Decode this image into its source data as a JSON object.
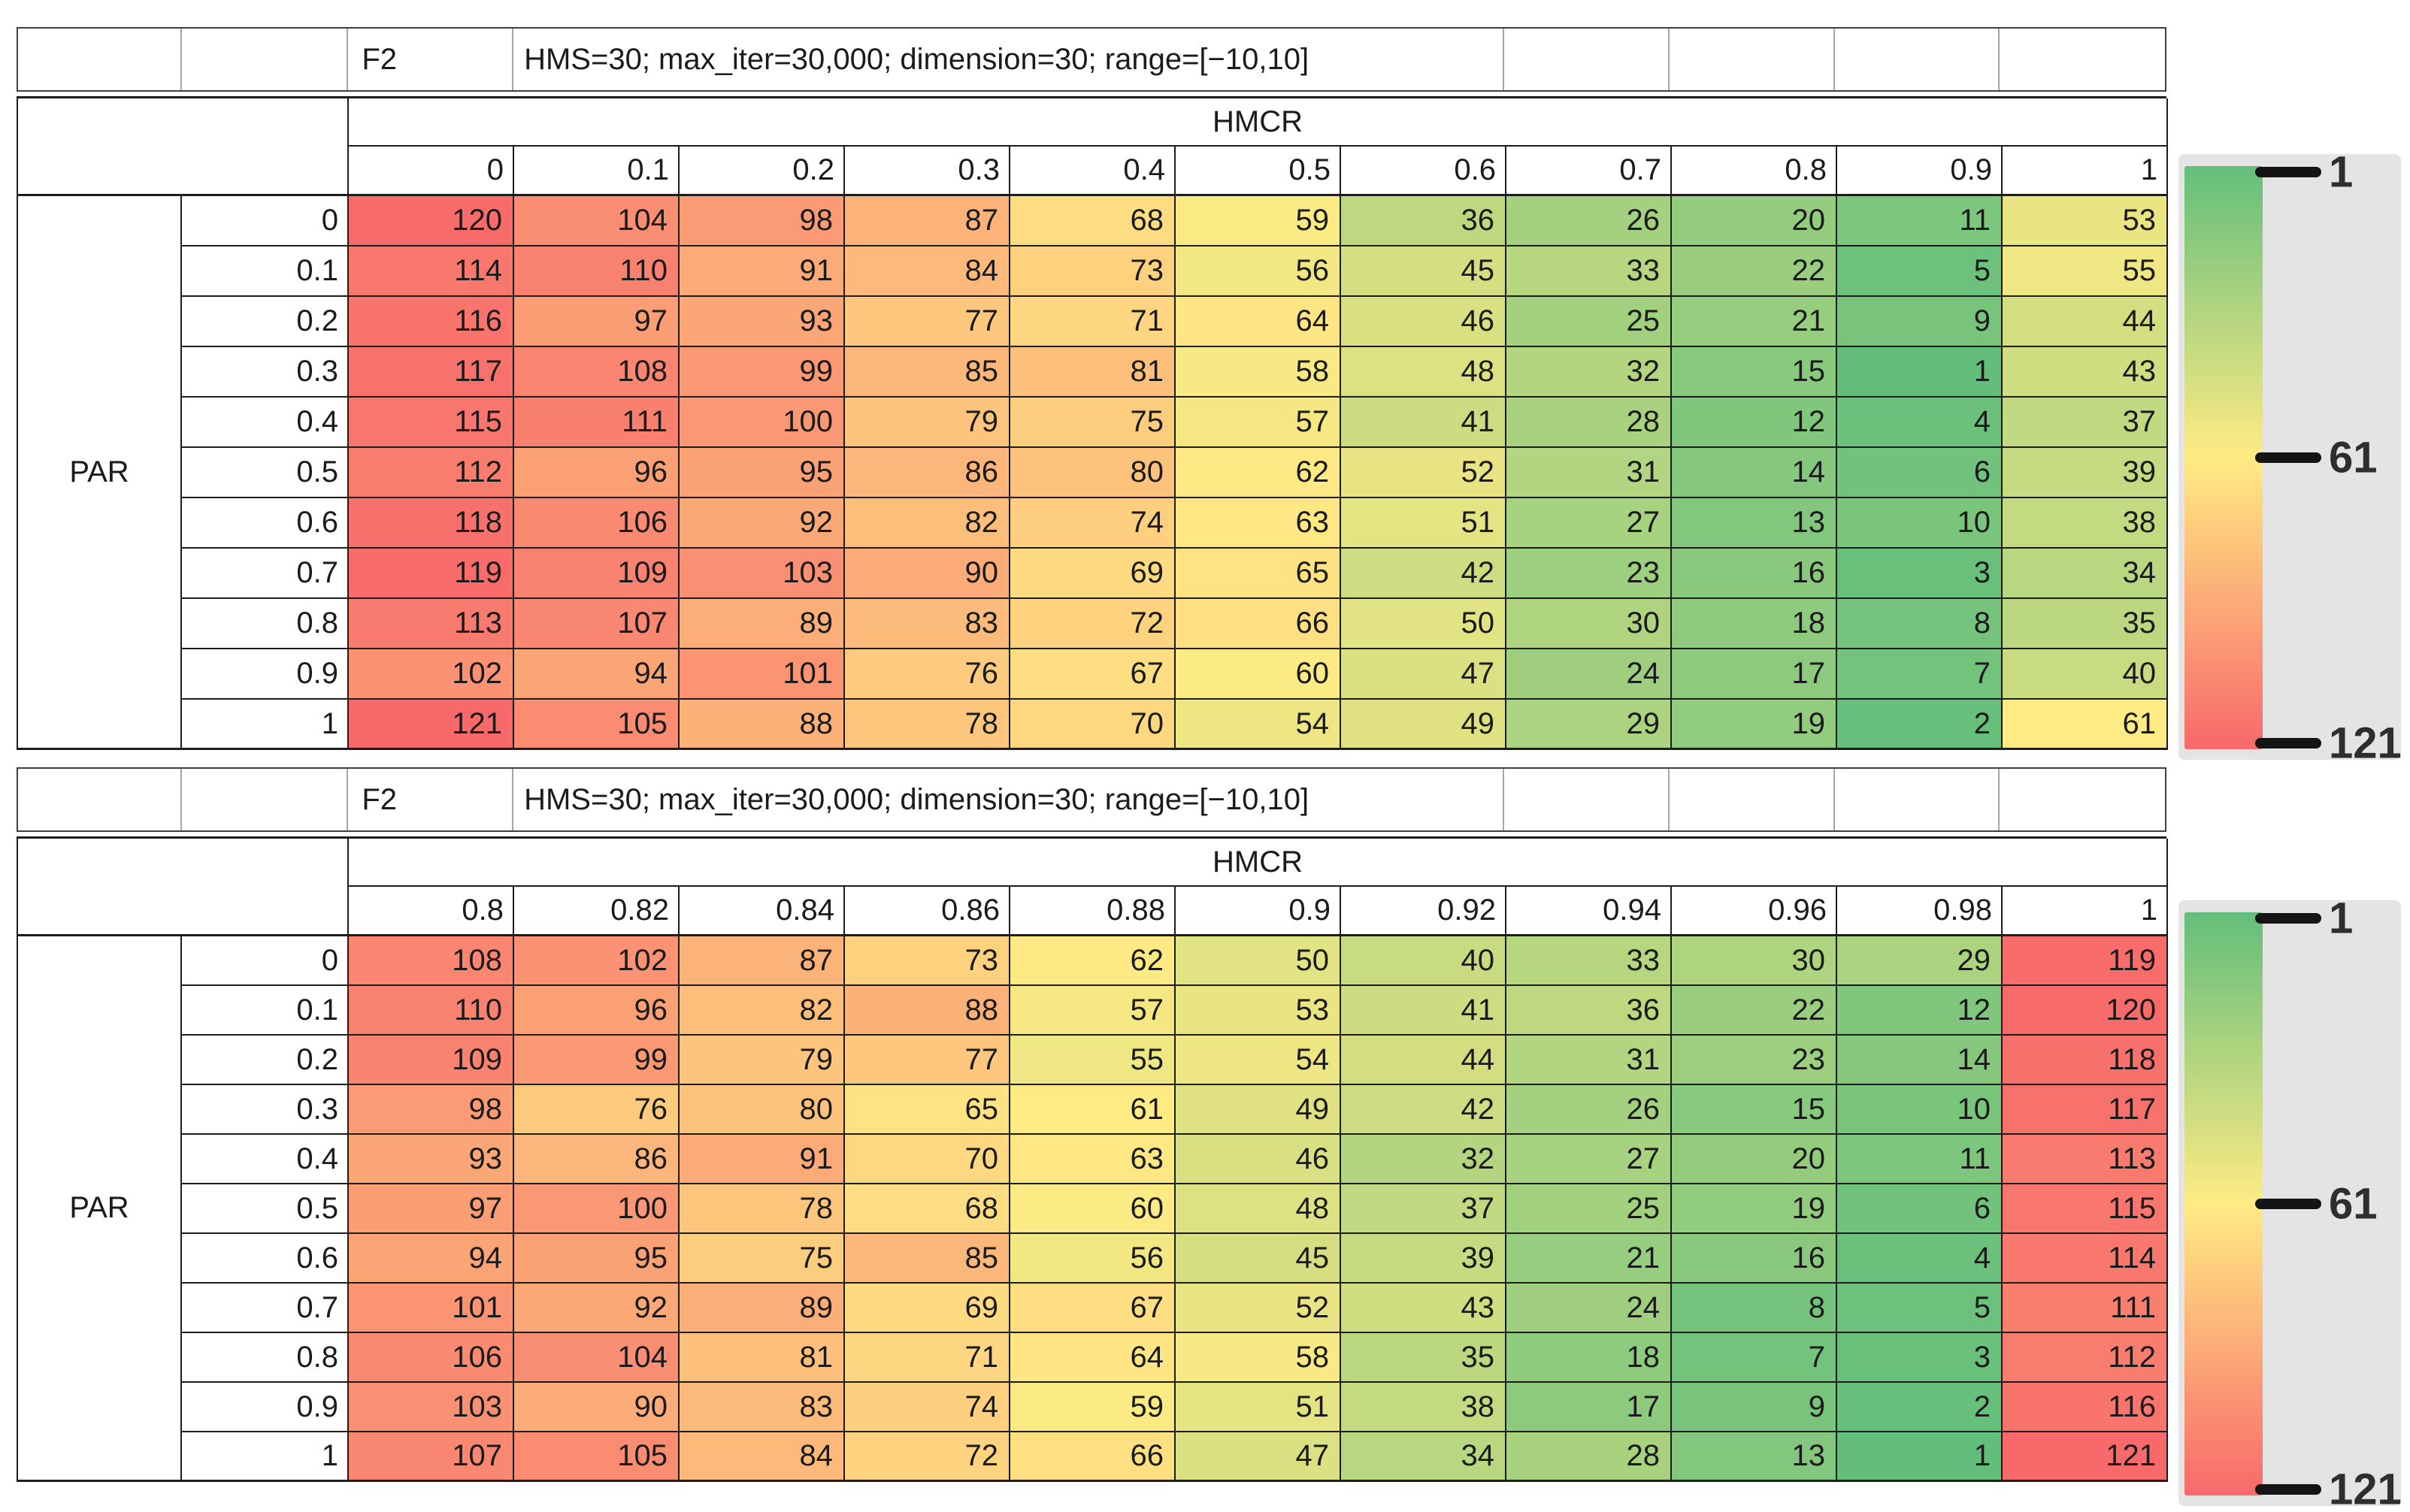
{
  "colors": {
    "scale_min": 1,
    "scale_mid": 61,
    "scale_max": 121,
    "min_color": "#63BE7B",
    "mid_color": "#FFEB84",
    "max_color": "#F8696B",
    "legend_bg": "#E4E4E4"
  },
  "chart_data": [
    {
      "type": "heatmap",
      "title": "F2",
      "subtitle": "HMS=30; max_iter=30,000; dimension=30; range=[−10,10]",
      "x_label": "HMCR",
      "y_label": "PAR",
      "columns": [
        "0",
        "0.1",
        "0.2",
        "0.3",
        "0.4",
        "0.5",
        "0.6",
        "0.7",
        "0.8",
        "0.9",
        "1"
      ],
      "rows": [
        "0",
        "0.1",
        "0.2",
        "0.3",
        "0.4",
        "0.5",
        "0.6",
        "0.7",
        "0.8",
        "0.9",
        "1"
      ],
      "values": [
        [
          120,
          104,
          98,
          87,
          68,
          59,
          36,
          26,
          20,
          11,
          53
        ],
        [
          114,
          110,
          91,
          84,
          73,
          56,
          45,
          33,
          22,
          5,
          55
        ],
        [
          116,
          97,
          93,
          77,
          71,
          64,
          46,
          25,
          21,
          9,
          44
        ],
        [
          117,
          108,
          99,
          85,
          81,
          58,
          48,
          32,
          15,
          1,
          43
        ],
        [
          115,
          111,
          100,
          79,
          75,
          57,
          41,
          28,
          12,
          4,
          37
        ],
        [
          112,
          96,
          95,
          86,
          80,
          62,
          52,
          31,
          14,
          6,
          39
        ],
        [
          118,
          106,
          92,
          82,
          74,
          63,
          51,
          27,
          13,
          10,
          38
        ],
        [
          119,
          109,
          103,
          90,
          69,
          65,
          42,
          23,
          16,
          3,
          34
        ],
        [
          113,
          107,
          89,
          83,
          72,
          66,
          50,
          30,
          18,
          8,
          35
        ],
        [
          102,
          94,
          101,
          76,
          67,
          60,
          47,
          24,
          17,
          7,
          40
        ],
        [
          121,
          105,
          88,
          78,
          70,
          54,
          49,
          29,
          19,
          2,
          61
        ]
      ],
      "legend_ticks": [
        "1",
        "61",
        "121"
      ],
      "legend_position": "right"
    },
    {
      "type": "heatmap",
      "title": "F2",
      "subtitle": "HMS=30; max_iter=30,000; dimension=30; range=[−10,10]",
      "x_label": "HMCR",
      "y_label": "PAR",
      "columns": [
        "0.8",
        "0.82",
        "0.84",
        "0.86",
        "0.88",
        "0.9",
        "0.92",
        "0.94",
        "0.96",
        "0.98",
        "1"
      ],
      "rows": [
        "0",
        "0.1",
        "0.2",
        "0.3",
        "0.4",
        "0.5",
        "0.6",
        "0.7",
        "0.8",
        "0.9",
        "1"
      ],
      "values": [
        [
          108,
          102,
          87,
          73,
          62,
          50,
          40,
          33,
          30,
          29,
          119
        ],
        [
          110,
          96,
          82,
          88,
          57,
          53,
          41,
          36,
          22,
          12,
          120
        ],
        [
          109,
          99,
          79,
          77,
          55,
          54,
          44,
          31,
          23,
          14,
          118
        ],
        [
          98,
          76,
          80,
          65,
          61,
          49,
          42,
          26,
          15,
          10,
          117
        ],
        [
          93,
          86,
          91,
          70,
          63,
          46,
          32,
          27,
          20,
          11,
          113
        ],
        [
          97,
          100,
          78,
          68,
          60,
          48,
          37,
          25,
          19,
          6,
          115
        ],
        [
          94,
          95,
          75,
          85,
          56,
          45,
          39,
          21,
          16,
          4,
          114
        ],
        [
          101,
          92,
          89,
          69,
          67,
          52,
          43,
          24,
          8,
          5,
          111
        ],
        [
          106,
          104,
          81,
          71,
          64,
          58,
          35,
          18,
          7,
          3,
          112
        ],
        [
          103,
          90,
          83,
          74,
          59,
          51,
          38,
          17,
          9,
          2,
          116
        ],
        [
          107,
          105,
          84,
          72,
          66,
          47,
          34,
          28,
          13,
          1,
          121
        ]
      ],
      "legend_ticks": [
        "1",
        "61",
        "121"
      ],
      "legend_position": "right"
    }
  ]
}
